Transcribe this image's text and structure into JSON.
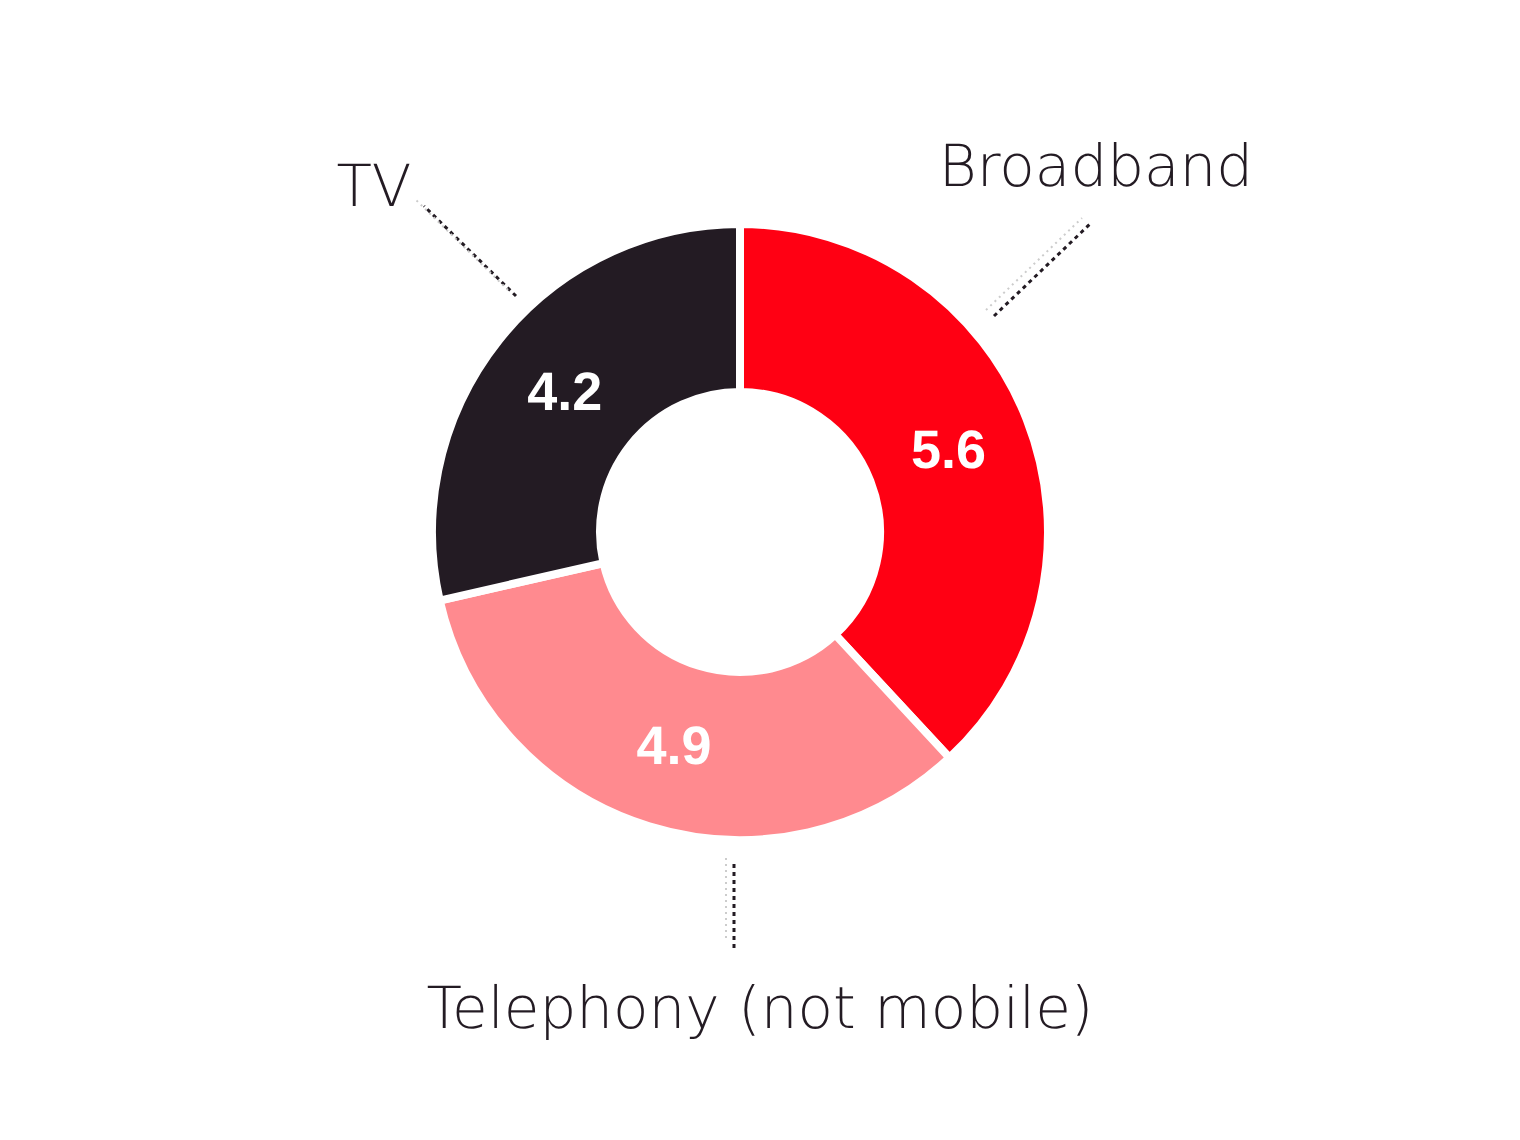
{
  "chart_data": {
    "type": "donut",
    "categories": [
      "Broadband",
      "Telephony (not mobile)",
      "TV"
    ],
    "values": [
      5.6,
      4.9,
      4.2
    ],
    "colors": [
      "#ff0013",
      "#ff8a8f",
      "#231b23"
    ],
    "data_labels": true
  }
}
